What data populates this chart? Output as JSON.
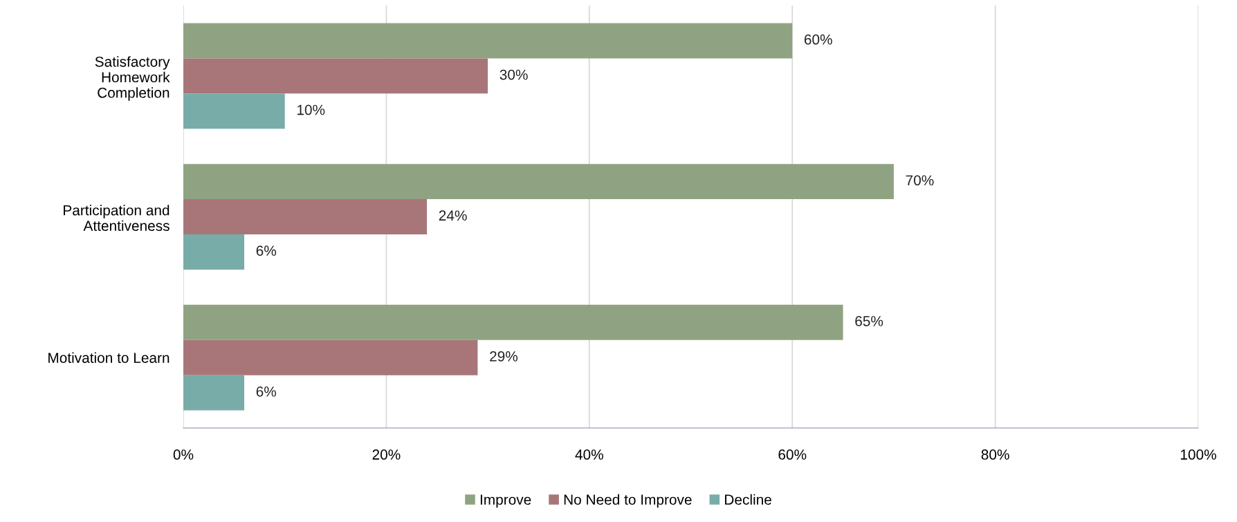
{
  "chart_data": {
    "type": "bar",
    "orientation": "horizontal",
    "categories": [
      "Satisfactory\nHomework\nCompletion",
      "Participation and\nAttentiveness",
      "Motivation to Learn"
    ],
    "series": [
      {
        "name": "Improve",
        "color": "#8fa382",
        "values": [
          60,
          70,
          65
        ],
        "value_labels": [
          "60%",
          "70%",
          "65%"
        ]
      },
      {
        "name": "No Need to Improve",
        "color": "#a87679",
        "values": [
          30,
          24,
          29
        ],
        "value_labels": [
          "30%",
          "24%",
          "29%"
        ]
      },
      {
        "name": "Decline",
        "color": "#78aca8",
        "values": [
          10,
          6,
          6
        ],
        "value_labels": [
          "10%",
          "6%",
          "6%"
        ]
      }
    ],
    "xlim": [
      0,
      100
    ],
    "xticks": [
      {
        "value": 0,
        "label": "0%"
      },
      {
        "value": 20,
        "label": "20%"
      },
      {
        "value": 40,
        "label": "40%"
      },
      {
        "value": 60,
        "label": "60%"
      },
      {
        "value": 80,
        "label": "80%"
      },
      {
        "value": 100,
        "label": "100%"
      }
    ],
    "grid": "x",
    "legend": "bottom"
  }
}
